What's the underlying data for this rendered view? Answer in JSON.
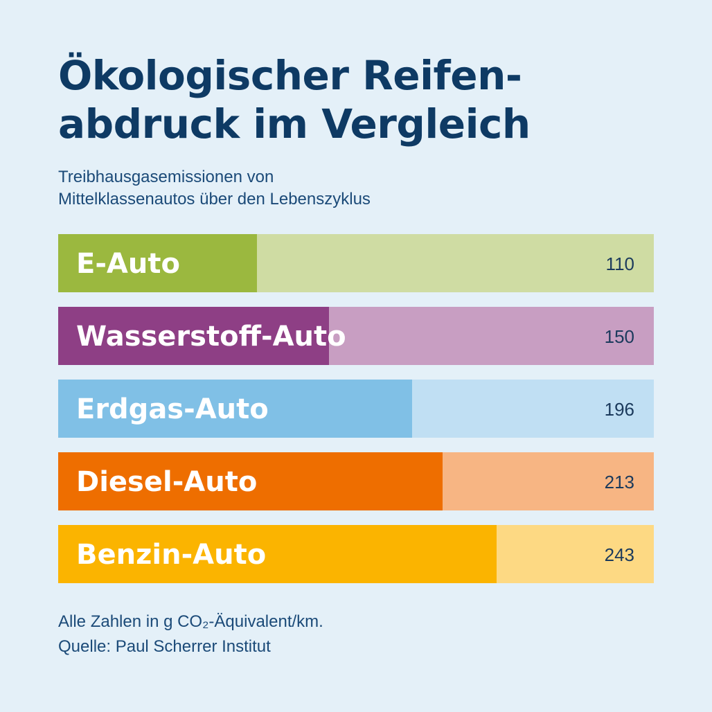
{
  "title": {
    "line1": "Ökologischer Reifen-",
    "line2": "abdruck im Vergleich"
  },
  "subtitle": {
    "line1": "Treibhausgasemissionen von",
    "line2": "Mittelklassenautos über den Lebenszyklus"
  },
  "footnote": {
    "line1": "Alle Zahlen in g CO₂-Äquivalent/km.",
    "line2": "Quelle: Paul Scherrer Institut"
  },
  "chart_data": {
    "type": "bar",
    "orientation": "horizontal",
    "categories": [
      "E-Auto",
      "Wasserstoff-Auto",
      "Erdgas-Auto",
      "Diesel-Auto",
      "Benzin-Auto"
    ],
    "values": [
      110,
      150,
      196,
      213,
      243
    ],
    "xlim": [
      0,
      330
    ],
    "colors": [
      "#9bb83f",
      "#8e3f85",
      "#80c0e6",
      "#ee6e00",
      "#fbb400"
    ],
    "background_colors": [
      "#cfdca3",
      "#c89ec2",
      "#c0dff3",
      "#f7b583",
      "#fdd983"
    ],
    "grid": false,
    "legend": "none"
  }
}
